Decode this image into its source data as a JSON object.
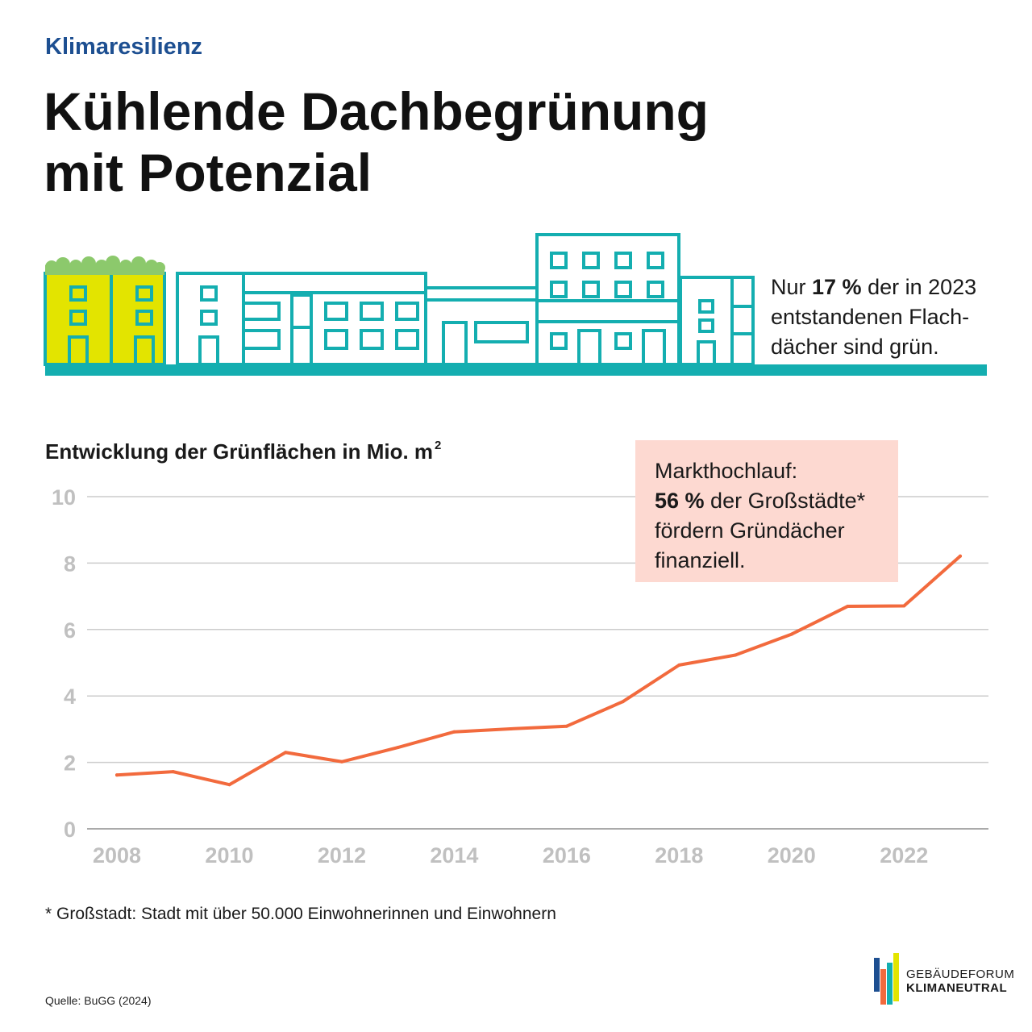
{
  "kicker": "Klimaresilienz",
  "title_line1": "Kühlende Dachbegrünung",
  "title_line2": "mit Potenzial",
  "share_callout": {
    "prefix": "Nur ",
    "highlight": "17 %",
    "suffix": " der in 2023 entstandenen Flach-dächer sind grün."
  },
  "chart_title": "Entwicklung der Grünflächen in Mio. m",
  "chart_title_sup": "2",
  "market_callout": {
    "line1": "Markthochlauf:",
    "highlight": "56 %",
    "rest": " der Großstädte* fördern Gründächer finanziell."
  },
  "footnote": "* Großstadt: Stadt mit über 50.000 Einwohnerinnen und Einwohnern",
  "source": "Quelle: BuGG (2024)",
  "logo": {
    "line1": "GEBÄUDEFORUM",
    "line2": "KLIMANEUTRAL"
  },
  "colors": {
    "accent_blue": "#1d4f91",
    "line": "#f26a3d",
    "teal": "#14aeb0",
    "green_roof": "#8cc96c",
    "yellow": "#e3e400",
    "callout_bg": "#fdd9d1",
    "grid": "#cccccc",
    "tick": "#c0c0c0"
  },
  "chart_data": {
    "type": "line",
    "title": "Entwicklung der Grünflächen in Mio. m²",
    "xlabel": "",
    "ylabel": "",
    "x": [
      2008,
      2009,
      2010,
      2011,
      2012,
      2013,
      2014,
      2015,
      2016,
      2017,
      2018,
      2019,
      2020,
      2021,
      2022,
      2023
    ],
    "series": [
      {
        "values": [
          1.62,
          1.72,
          1.33,
          2.3,
          2.02,
          2.45,
          2.92,
          3.01,
          3.09,
          3.83,
          4.93,
          5.23,
          5.86,
          6.7,
          6.71,
          8.21
        ]
      }
    ],
    "xticks": [
      "2008",
      "2010",
      "2012",
      "2014",
      "2016",
      "2018",
      "2020",
      "2022"
    ],
    "yticks": [
      "0",
      "2",
      "4",
      "6",
      "8",
      "10"
    ],
    "ylim": [
      0,
      10
    ],
    "xlim": [
      2008,
      2023
    ],
    "grid": true,
    "legend": "none"
  }
}
